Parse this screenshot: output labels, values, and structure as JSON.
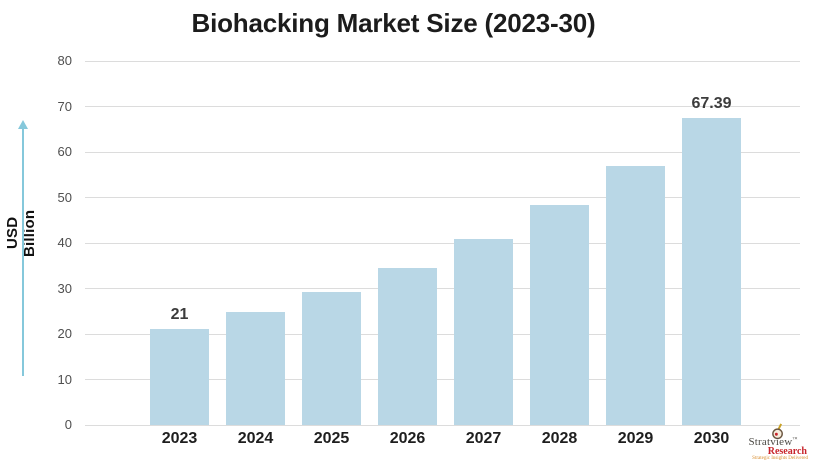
{
  "chart_data": {
    "type": "bar",
    "title": "Biohacking Market Size (2023-30)",
    "ylabel": "USD Billion",
    "xlabel": "",
    "categories": [
      "2023",
      "2024",
      "2025",
      "2026",
      "2027",
      "2028",
      "2029",
      "2030"
    ],
    "values": [
      21,
      24.8,
      29.3,
      34.6,
      40.9,
      48.3,
      57,
      67.39
    ],
    "data_labels": [
      "21",
      "",
      "",
      "",
      "",
      "",
      "",
      "67.39"
    ],
    "ylim": [
      0,
      80
    ],
    "yticks": [
      0,
      10,
      20,
      30,
      40,
      50,
      60,
      70,
      80
    ],
    "grid": true,
    "legend_position": "none",
    "bar_color": "#b9d7e6",
    "gridline_color": "#dcdcdc"
  },
  "branding": {
    "name": "Stratview",
    "trademark": "™",
    "division": "Research",
    "tagline": "Strategic Insights Delivered"
  }
}
